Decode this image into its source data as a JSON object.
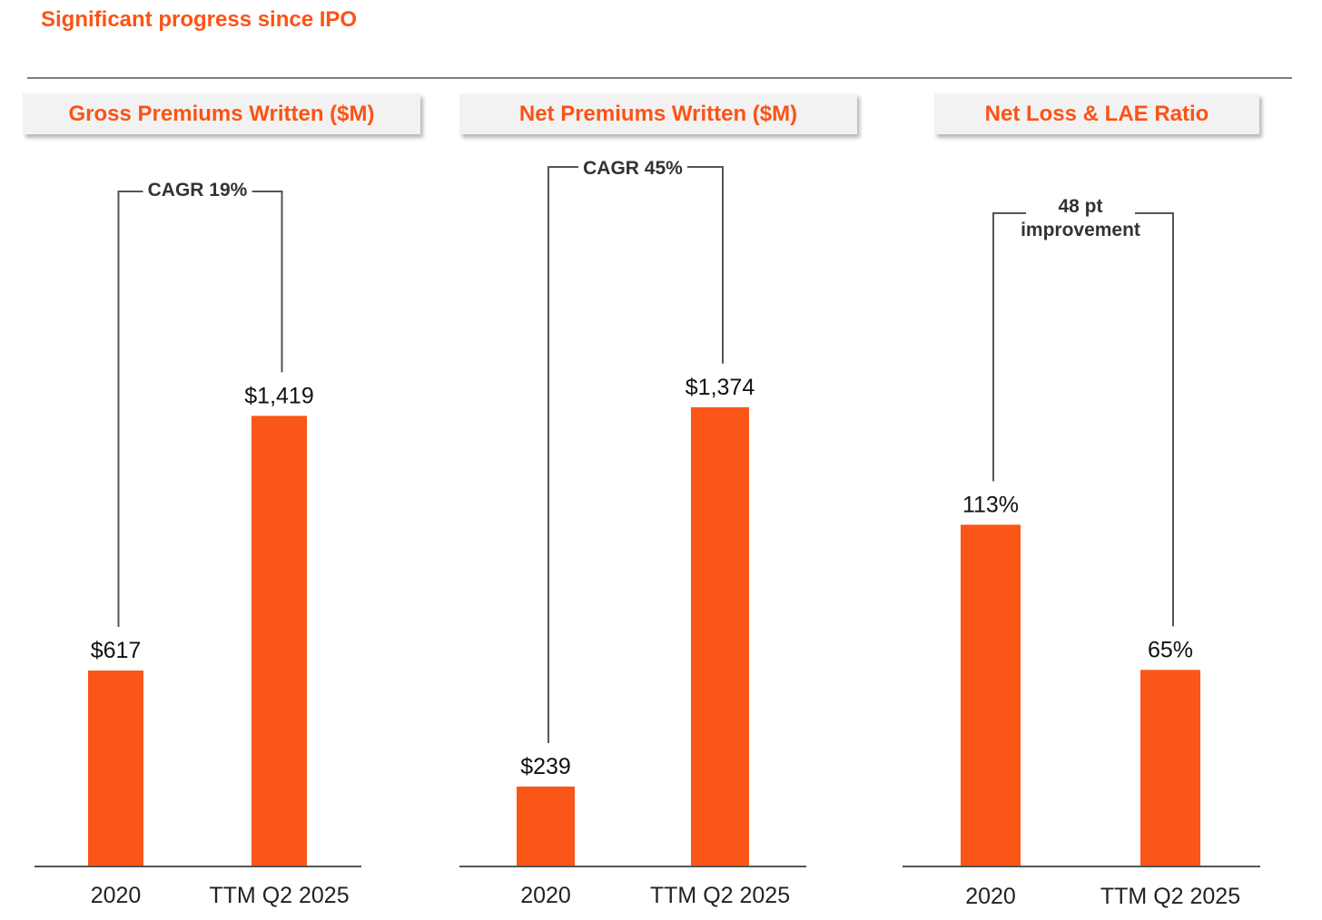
{
  "page": {
    "title": "Significant progress since IPO",
    "accent_color": "#fb5316",
    "bar_color": "#fa5618"
  },
  "chart_data": [
    {
      "type": "bar",
      "title": "Gross Premiums Written ($M)",
      "categories": [
        "2020",
        "TTM Q2 2025"
      ],
      "values": [
        617,
        1419
      ],
      "value_labels": [
        "$617",
        "$1,419"
      ],
      "ylim": [
        0,
        2000
      ],
      "annotation": [
        "CAGR 19%"
      ],
      "grid": false
    },
    {
      "type": "bar",
      "title": "Net Premiums Written ($M)",
      "categories": [
        "2020",
        "TTM Q2 2025"
      ],
      "values": [
        239,
        1374
      ],
      "value_labels": [
        "$239",
        "$1,374"
      ],
      "ylim": [
        0,
        1900
      ],
      "annotation": [
        "CAGR 45%"
      ],
      "grid": false
    },
    {
      "type": "bar",
      "title": "Net Loss & LAE Ratio",
      "categories": [
        "2020",
        "TTM Q2 2025"
      ],
      "values": [
        113,
        65
      ],
      "value_labels": [
        "113%",
        "65%"
      ],
      "ylim": [
        0,
        210
      ],
      "annotation": [
        "48 pt",
        "improvement"
      ],
      "grid": false
    }
  ]
}
